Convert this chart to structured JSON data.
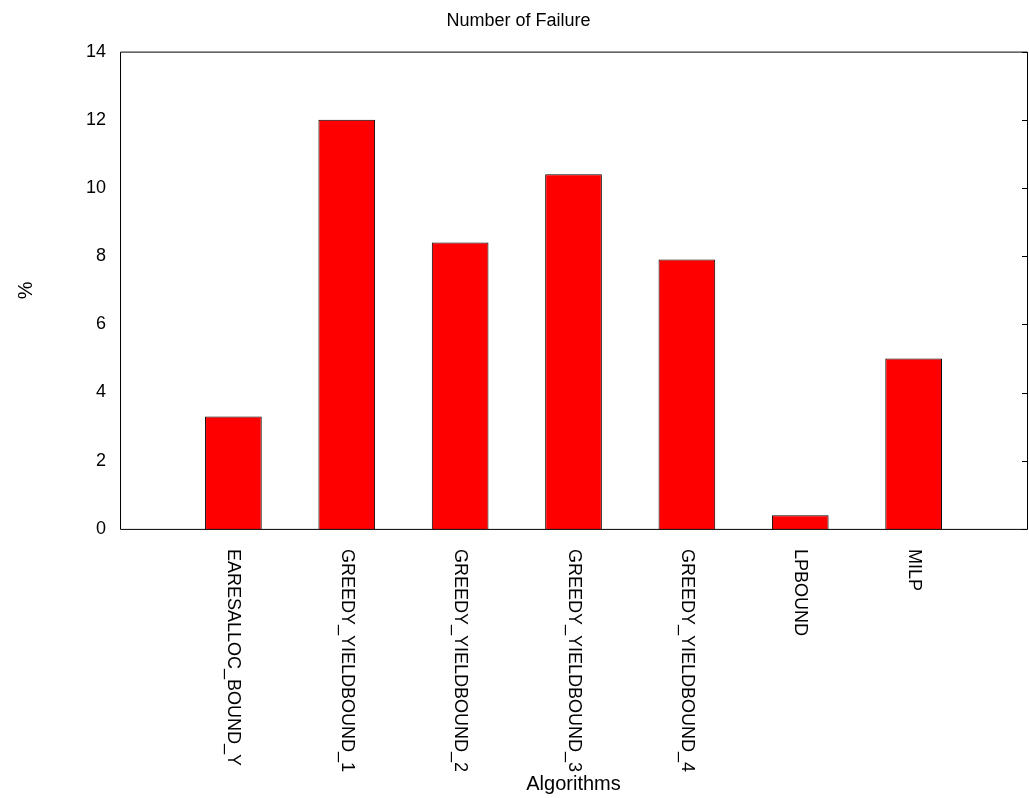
{
  "chart_data": {
    "type": "bar",
    "title": "Number of Failure",
    "xlabel": "Algorithms",
    "ylabel": "%",
    "categories": [
      "EARESALLOC_BOUND_Y",
      "GREEDY_YIELDBOUND_1",
      "GREEDY_YIELDBOUND_2",
      "GREEDY_YIELDBOUND_3",
      "GREEDY_YIELDBOUND_4",
      "LPBOUND",
      "MILP"
    ],
    "values": [
      3.3,
      12.0,
      8.4,
      10.4,
      7.9,
      0.4,
      5.0
    ],
    "color": "#ff0000",
    "ylim": [
      0,
      14
    ],
    "yticks": [
      0,
      2,
      4,
      6,
      8,
      10,
      12,
      14
    ],
    "grid": false,
    "legend": false
  }
}
